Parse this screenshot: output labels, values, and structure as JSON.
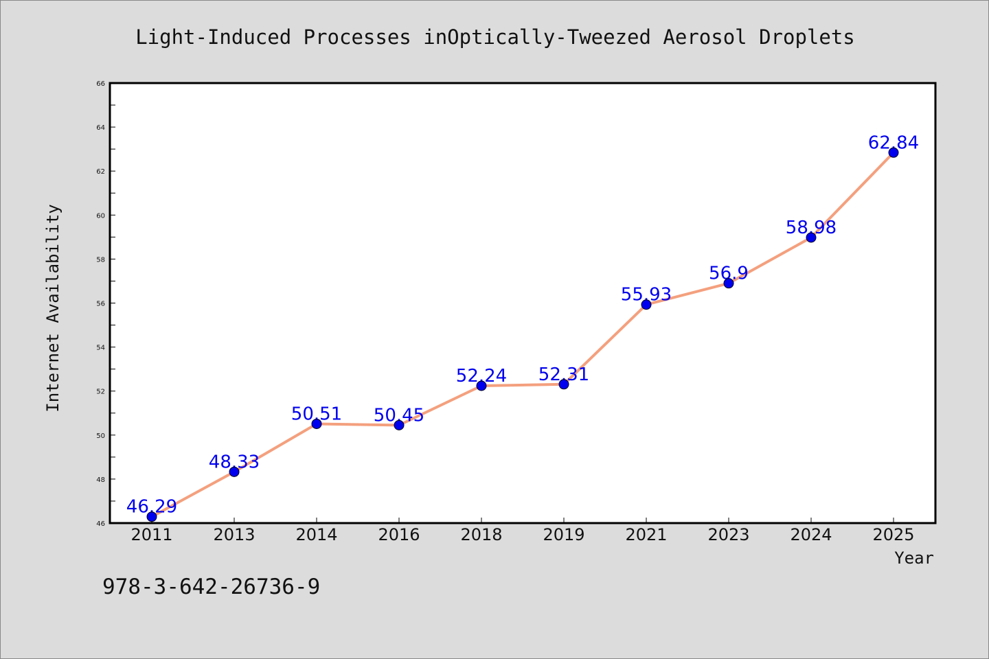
{
  "chart_data": {
    "type": "line",
    "title": "Light-Induced Processes inOptically-Tweezed Aerosol Droplets",
    "xlabel": "Year",
    "ylabel": "Internet Availability",
    "categories": [
      "2011",
      "2013",
      "2014",
      "2016",
      "2018",
      "2019",
      "2021",
      "2023",
      "2024",
      "2025"
    ],
    "series": [
      {
        "values": [
          46.29,
          48.33,
          50.51,
          50.45,
          52.24,
          52.31,
          55.93,
          56.9,
          58.98,
          62.84
        ],
        "line_color": "#f4a07e",
        "marker_color": "#0000ee"
      }
    ],
    "value_labels": [
      "46.29",
      "48.33",
      "50.51",
      "50.45",
      "52.24",
      "52.31",
      "55.93",
      "56.9",
      "58.98",
      "62.84"
    ],
    "ylim": [
      46,
      66
    ],
    "yticks": [
      "46",
      "48",
      "50",
      "52",
      "54",
      "56",
      "58",
      "60",
      "62",
      "64",
      "66"
    ],
    "grid": false,
    "legend": "none"
  },
  "footer": {
    "isbn": "978-3-642-26736-9"
  },
  "colors": {
    "background": "#dcdcdc",
    "plot_background": "#ffffff",
    "line": "#f4a07e",
    "marker": "#0000ee",
    "label": "#0000ee"
  }
}
